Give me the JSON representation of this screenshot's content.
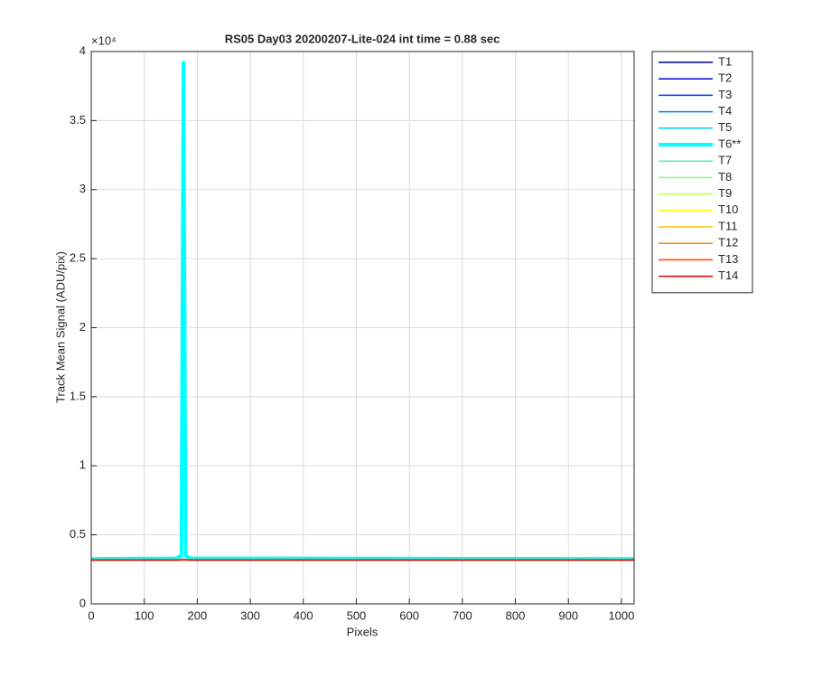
{
  "chart_data": {
    "type": "line",
    "title": "RS05 Day03 20200207-Lite-024 int time = 0.88 sec",
    "xlabel": "Pixels",
    "ylabel": "Track Mean Signal (ADU/pix)",
    "y_scale_label": "×10⁴",
    "xlim": [
      0,
      1024
    ],
    "xticks": [
      0,
      100,
      200,
      300,
      400,
      500,
      600,
      700,
      800,
      900,
      1000
    ],
    "ylim": [
      0,
      4
    ],
    "yticks": [
      0,
      0.5,
      1,
      1.5,
      2,
      2.5,
      3,
      3.5,
      4
    ],
    "grid": true,
    "legend": "outside-right",
    "x": [
      0,
      160,
      170,
      174,
      178,
      188,
      1024
    ],
    "series": [
      {
        "name": "T1",
        "color": "#00008f",
        "values": [
          0.318,
          0.318,
          0.319,
          0.319,
          0.319,
          0.318,
          0.318
        ]
      },
      {
        "name": "T2",
        "color": "#0000df",
        "values": [
          0.319,
          0.319,
          0.32,
          0.32,
          0.32,
          0.319,
          0.319
        ]
      },
      {
        "name": "T3",
        "color": "#0030ff",
        "values": [
          0.32,
          0.32,
          0.321,
          0.321,
          0.321,
          0.32,
          0.32
        ]
      },
      {
        "name": "T4",
        "color": "#0080ff",
        "values": [
          0.321,
          0.321,
          0.322,
          0.322,
          0.322,
          0.321,
          0.321
        ]
      },
      {
        "name": "T5",
        "color": "#00cfff",
        "values": [
          0.322,
          0.322,
          0.324,
          0.325,
          0.324,
          0.322,
          0.322
        ]
      },
      {
        "name": "T6**",
        "color": "#00ffff",
        "linewidth": 4,
        "values": [
          0.326,
          0.33,
          0.35,
          3.93,
          0.35,
          0.33,
          0.326
        ]
      },
      {
        "name": "T7",
        "color": "#50f0c0",
        "values": [
          0.321,
          0.321,
          0.322,
          0.322,
          0.322,
          0.321,
          0.321
        ]
      },
      {
        "name": "T8",
        "color": "#80ff80",
        "values": [
          0.32,
          0.32,
          0.321,
          0.321,
          0.321,
          0.32,
          0.32
        ]
      },
      {
        "name": "T9",
        "color": "#bfff40",
        "values": [
          0.32,
          0.32,
          0.32,
          0.32,
          0.32,
          0.32,
          0.32
        ]
      },
      {
        "name": "T10",
        "color": "#ffff00",
        "values": [
          0.319,
          0.319,
          0.32,
          0.32,
          0.32,
          0.319,
          0.319
        ]
      },
      {
        "name": "T11",
        "color": "#ffbf00",
        "values": [
          0.319,
          0.319,
          0.319,
          0.319,
          0.319,
          0.319,
          0.319
        ]
      },
      {
        "name": "T12",
        "color": "#ff8000",
        "values": [
          0.318,
          0.318,
          0.319,
          0.319,
          0.319,
          0.318,
          0.318
        ]
      },
      {
        "name": "T13",
        "color": "#ff4000",
        "values": [
          0.318,
          0.318,
          0.318,
          0.318,
          0.318,
          0.318,
          0.318
        ]
      },
      {
        "name": "T14",
        "color": "#df0000",
        "values": [
          0.317,
          0.317,
          0.318,
          0.318,
          0.318,
          0.317,
          0.317
        ]
      }
    ]
  }
}
